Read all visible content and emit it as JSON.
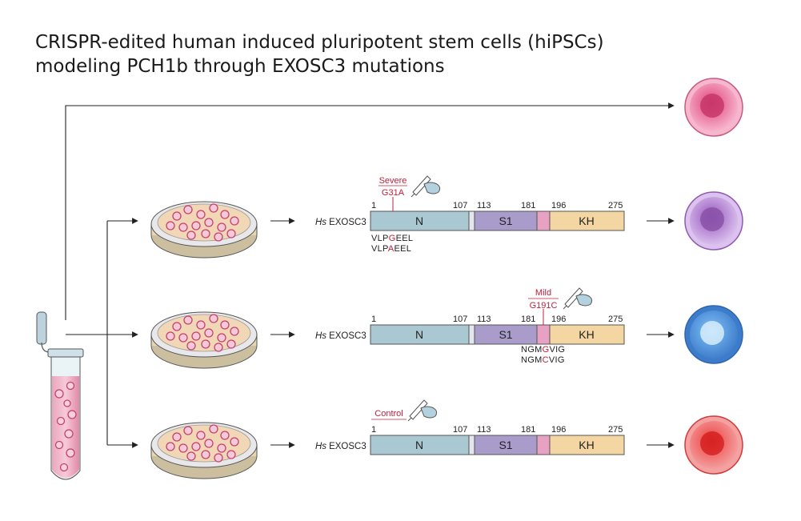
{
  "title": {
    "line1": "CRISPR-edited human induced pluripotent stem cells (hiPSCs)",
    "line2": "modeling PCH1b through EXOSC3 mutations"
  },
  "protein": {
    "species": "Hs",
    "gene": "EXOSC3",
    "positions": [
      "1",
      "107",
      "113",
      "181",
      "196",
      "275"
    ],
    "domains": [
      "N",
      "S1",
      "KH"
    ]
  },
  "rows": [
    {
      "label": "Severe",
      "mutation": "G31A",
      "seq_wt": [
        "VLP",
        "G",
        "EEL"
      ],
      "seq_mut": [
        "VLP",
        "A",
        "EEL"
      ]
    },
    {
      "label": "Mild",
      "mutation": "G191C",
      "seq_wt": [
        "NGM",
        "G",
        "VIG"
      ],
      "seq_mut": [
        "NGM",
        "C",
        "VIG"
      ]
    },
    {
      "label": "Control",
      "mutation": "",
      "seq_wt": [],
      "seq_mut": []
    }
  ],
  "colors": {
    "domain_N": "#a9c8d1",
    "linker_1": "#e3e6ec",
    "domain_S1": "#a99ccb",
    "linker_2": "#e7a1c2",
    "domain_KH": "#f3d6a2",
    "mutation_red": "#c0203a",
    "cell_top": "#e35b8a",
    "cell_severe": "#a65fc4",
    "cell_mild": "#4d8fd8",
    "cell_control": "#e63a3a"
  },
  "icons": [
    "test-tube-icon",
    "petri-dish-icon",
    "pen-hand-icon",
    "cell-icon"
  ]
}
